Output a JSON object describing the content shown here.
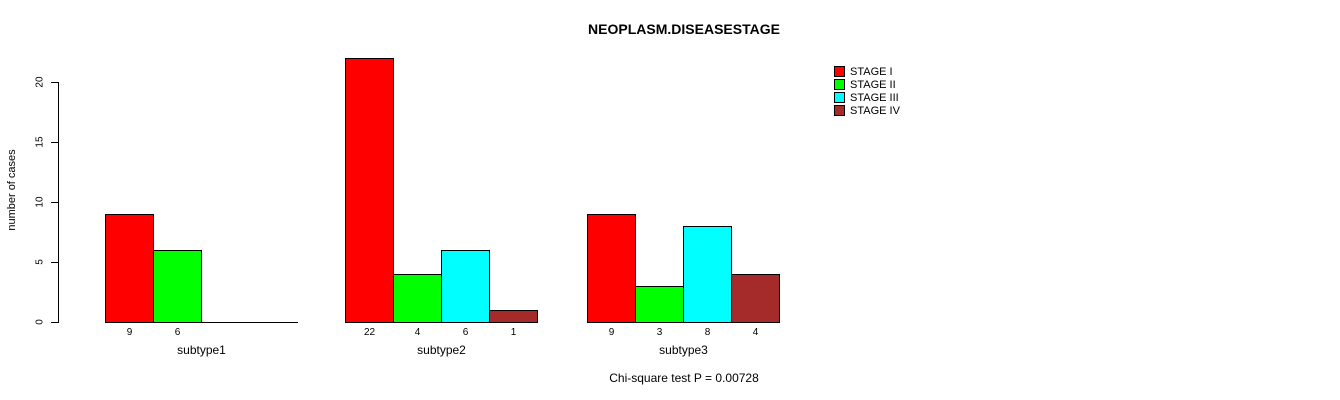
{
  "chart_data": {
    "type": "bar",
    "title": "NEOPLASM.DISEASESTAGE",
    "xlabel": "",
    "ylabel": "number of cases",
    "categories": [
      "subtype1",
      "subtype2",
      "subtype3"
    ],
    "series": [
      {
        "name": "STAGE I",
        "color": "#FF0000",
        "values": [
          9,
          22,
          9
        ]
      },
      {
        "name": "STAGE II",
        "color": "#00FF00",
        "values": [
          6,
          4,
          3
        ]
      },
      {
        "name": "STAGE III",
        "color": "#00FFFF",
        "values": [
          0,
          6,
          8
        ]
      },
      {
        "name": "STAGE IV",
        "color": "#A52A2A",
        "values": [
          0,
          1,
          4
        ]
      }
    ],
    "bar_value_labels": {
      "subtype1": [
        "9",
        "6"
      ],
      "subtype2": [
        "22",
        "4",
        "6",
        "1"
      ],
      "subtype3": [
        "9",
        "3",
        "8",
        "4"
      ]
    },
    "yticks": [
      0,
      5,
      10,
      15,
      20
    ],
    "ylim": [
      0,
      22
    ],
    "grid": false,
    "legend": {
      "position": "top-right",
      "entries": [
        "STAGE I",
        "STAGE II",
        "STAGE III",
        "STAGE IV"
      ]
    },
    "annotation": "Chi-square test P = 0.00728"
  }
}
